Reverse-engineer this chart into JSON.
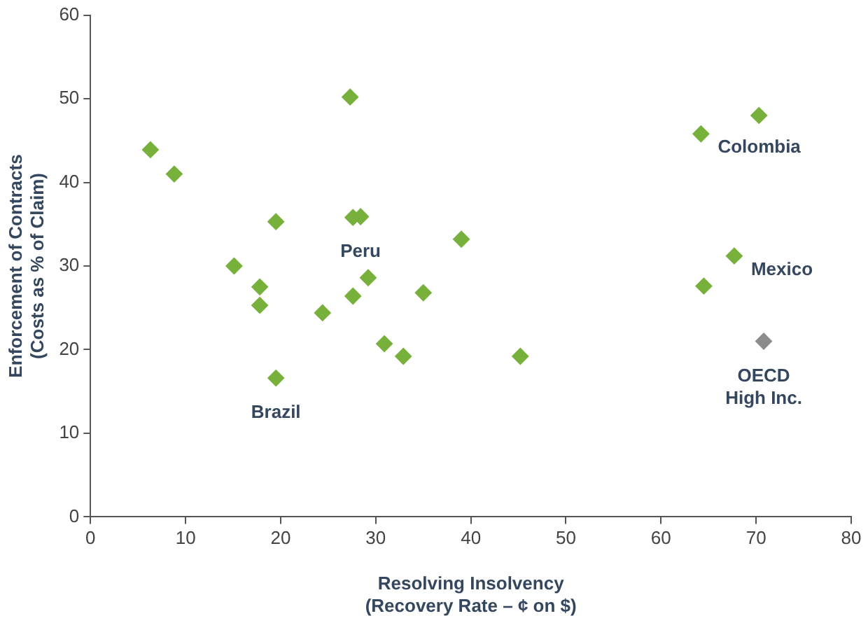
{
  "chart_data": {
    "type": "scatter",
    "xlabel": "Resolving Insolvency\n(Recovery Rate – ¢ on $)",
    "ylabel": "Enforcement of Contracts\n(Costs as % of Claim)",
    "xlim": [
      0,
      80
    ],
    "xticks": [
      0,
      10,
      20,
      30,
      40,
      50,
      60,
      70,
      80
    ],
    "ylim": [
      0,
      60
    ],
    "yticks": [
      0,
      10,
      20,
      30,
      40,
      50,
      60
    ],
    "grid": false,
    "legend": false,
    "marker": "diamond",
    "series": [
      {
        "color": "#77b13c",
        "x": [
          6.3,
          8.8,
          15.1,
          17.8,
          17.8,
          19.5,
          19.5,
          24.4,
          27.3,
          27.6,
          28.4,
          27.6,
          29.2,
          30.9,
          32.9,
          35.0,
          39.0,
          45.2,
          64.2,
          70.3,
          67.7,
          64.5
        ],
        "values": [
          43.9,
          41.0,
          30.0,
          27.5,
          25.3,
          35.3,
          16.6,
          24.4,
          50.2,
          35.8,
          35.9,
          26.4,
          28.6,
          20.7,
          19.2,
          26.8,
          33.2,
          19.2,
          45.8,
          48.0,
          31.2,
          27.6
        ]
      },
      {
        "color": "#8c8c8c",
        "x": [
          70.8
        ],
        "values": [
          21.0
        ]
      }
    ],
    "annotations": [
      {
        "text": "Peru",
        "x": 28.4,
        "y": 35.9
      },
      {
        "text": "Brazil",
        "x": 19.5,
        "y": 16.6
      },
      {
        "text": "Colombia",
        "x": 64.2,
        "y": 45.8
      },
      {
        "text": "Mexico",
        "x": 67.7,
        "y": 31.2
      },
      {
        "text": "OECD\nHigh Inc.",
        "x": 70.8,
        "y": 21.0
      }
    ]
  }
}
